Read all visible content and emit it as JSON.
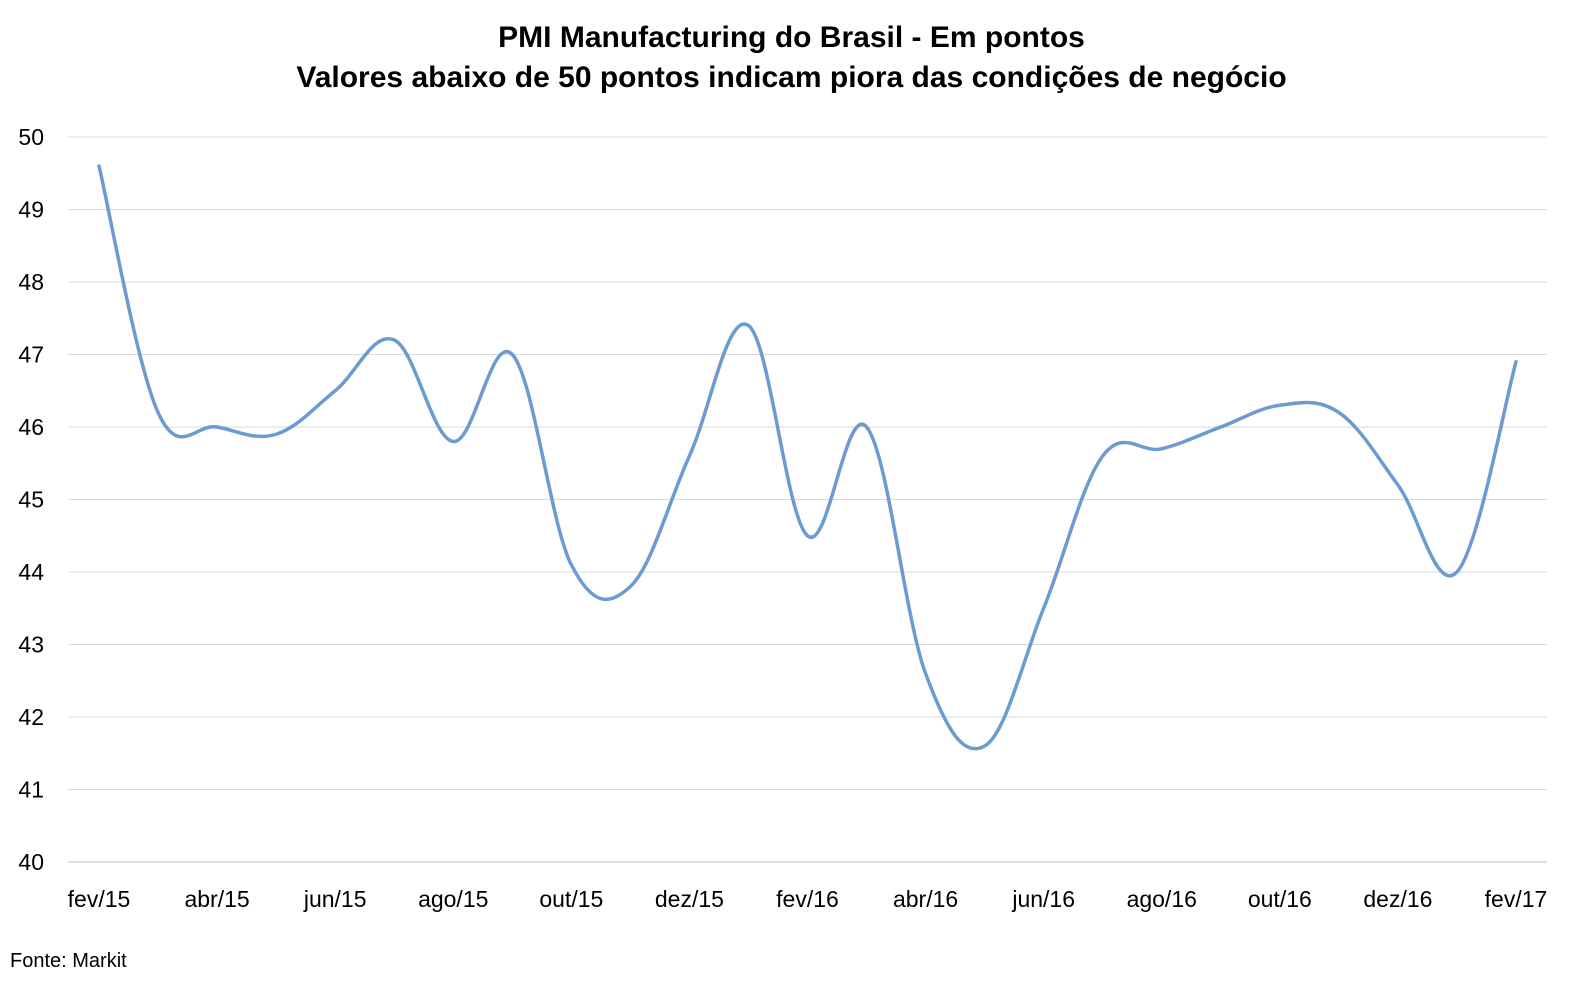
{
  "chart_data": {
    "type": "line",
    "title": "PMI Manufacturing do Brasil - Em pontos",
    "subtitle": "Valores abaixo de 50 pontos indicam piora das condições de negócio",
    "x": [
      "fev/15",
      "mar/15",
      "abr/15",
      "mai/15",
      "jun/15",
      "jul/15",
      "ago/15",
      "set/15",
      "out/15",
      "nov/15",
      "dez/15",
      "jan/16",
      "fev/16",
      "mar/16",
      "abr/16",
      "mai/16",
      "jun/16",
      "jul/16",
      "ago/16",
      "set/16",
      "out/16",
      "nov/16",
      "dez/16",
      "jan/17",
      "fev/17"
    ],
    "xticks": [
      "fev/15",
      "abr/15",
      "jun/15",
      "ago/15",
      "out/15",
      "dez/15",
      "fev/16",
      "abr/16",
      "jun/16",
      "ago/16",
      "out/16",
      "dez/16",
      "fev/17"
    ],
    "yticks": [
      40,
      41,
      42,
      43,
      44,
      45,
      46,
      47,
      48,
      49,
      50
    ],
    "series": [
      {
        "values": [
          49.6,
          46.2,
          46.0,
          45.9,
          46.5,
          47.2,
          45.8,
          47.0,
          44.1,
          43.8,
          45.6,
          47.4,
          44.5,
          46.0,
          42.6,
          41.6,
          43.5,
          45.6,
          45.7,
          46.0,
          46.3,
          46.2,
          45.2,
          44.0,
          46.9
        ],
        "color": "#6b9bd1"
      }
    ],
    "ylim": [
      40,
      50
    ],
    "xlabel": "",
    "ylabel": "",
    "grid": true,
    "legend": "none",
    "source": "Fonte: Markit"
  }
}
